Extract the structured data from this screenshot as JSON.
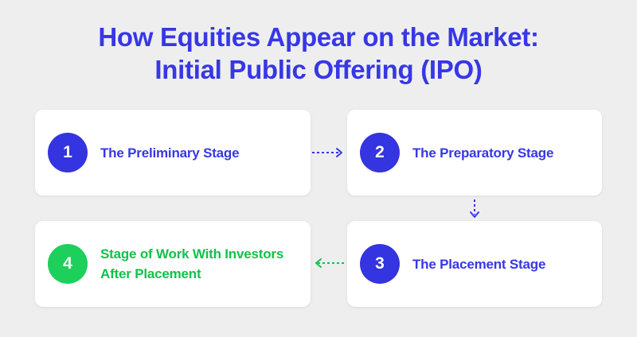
{
  "title": {
    "line1": "How Equities Appear on the Market:",
    "line2": "Initial Public Offering (IPO)"
  },
  "colors": {
    "primary": "#3737e6",
    "badge_blue": "#3434e0",
    "green": "#12c14b",
    "badge_green": "#1dcf5b",
    "background": "#eeeeee",
    "card": "#ffffff"
  },
  "stages": [
    {
      "number": "1",
      "label": "The Preliminary Stage"
    },
    {
      "number": "2",
      "label": "The Preparatory Stage"
    },
    {
      "number": "3",
      "label": "The Placement Stage"
    },
    {
      "number": "4",
      "label": "Stage of Work With Investors After Placement"
    }
  ]
}
